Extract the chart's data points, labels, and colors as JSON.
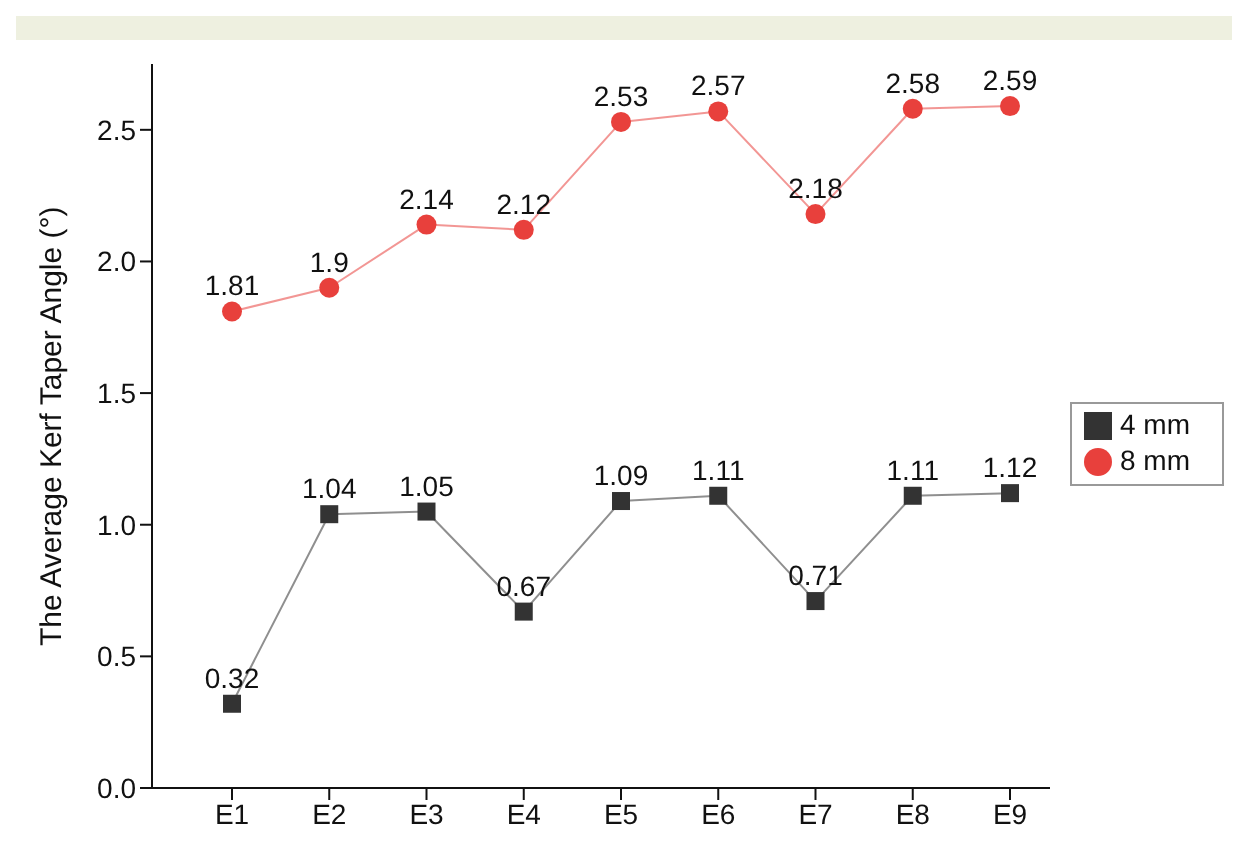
{
  "chart_data": {
    "type": "line",
    "ylabel": "The Average Kerf Taper Angle (°)",
    "categories": [
      "E1",
      "E2",
      "E3",
      "E4",
      "E5",
      "E6",
      "E7",
      "E8",
      "E9"
    ],
    "series": [
      {
        "name": "4 mm",
        "color": "#333333",
        "marker": "square",
        "values": [
          0.32,
          1.04,
          1.05,
          0.67,
          1.09,
          1.11,
          0.71,
          1.11,
          1.12
        ]
      },
      {
        "name": "8 mm",
        "color": "#e8403c",
        "marker": "circle",
        "values": [
          1.81,
          1.9,
          2.14,
          2.12,
          2.53,
          2.57,
          2.18,
          2.58,
          2.59
        ]
      }
    ],
    "ylim": [
      0,
      2.75
    ],
    "yticks": [
      {
        "value": 0,
        "label": "0.0"
      },
      {
        "value": 0.5,
        "label": "0.5"
      },
      {
        "value": 1,
        "label": "1.0"
      },
      {
        "value": 1.5,
        "label": "1.5"
      },
      {
        "value": 2,
        "label": "2.0"
      },
      {
        "value": 2.5,
        "label": "2.5"
      }
    ],
    "data_labels": true,
    "grid": false,
    "legend": "right",
    "line_style": "solid"
  }
}
